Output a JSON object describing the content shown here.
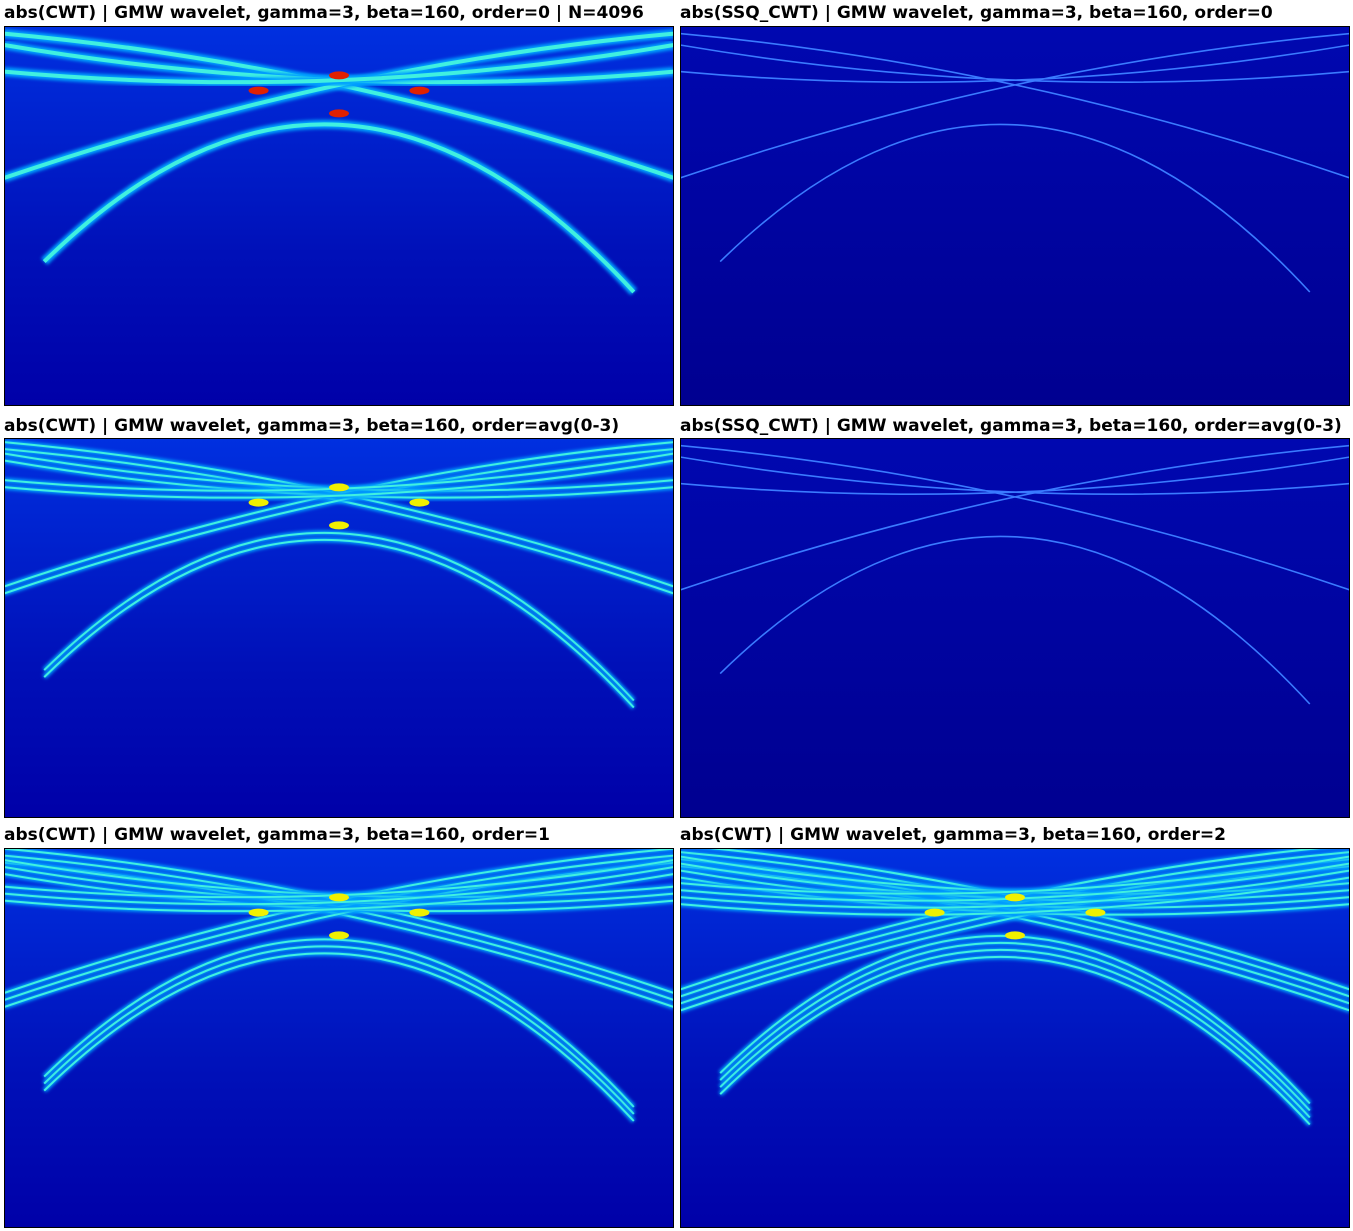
{
  "figure": {
    "panels": [
      {
        "title": "abs(CWT) | GMW wavelet, gamma=3, beta=160, order=0 | N=4096"
      },
      {
        "title": "abs(SSQ_CWT) | GMW wavelet, gamma=3, beta=160, order=0"
      },
      {
        "title": "abs(CWT) | GMW wavelet, gamma=3, beta=160, order=avg(0-3)"
      },
      {
        "title": "abs(SSQ_CWT) | GMW wavelet, gamma=3, beta=160, order=avg(0-3)"
      },
      {
        "title": "abs(CWT) | GMW wavelet, gamma=3, beta=160, order=1"
      },
      {
        "title": "abs(CWT) | GMW wavelet, gamma=3, beta=160, order=2"
      }
    ]
  }
}
